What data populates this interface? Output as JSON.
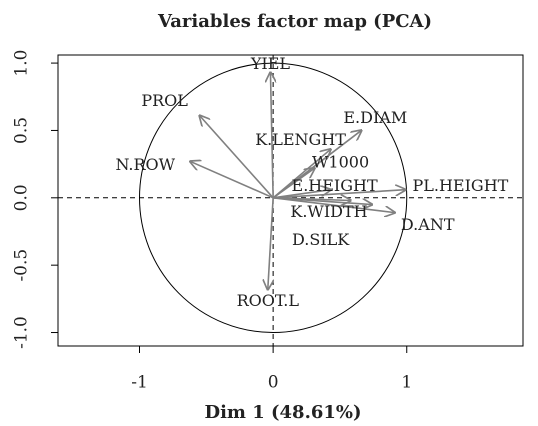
{
  "chart_data": {
    "type": "vector",
    "title": "Variables factor map (PCA)",
    "x_label": "Dim 1 (48.61%)",
    "labels": [
      "YIEL",
      "PROL",
      "N.ROW",
      "E.DIAM",
      "K.LENGHT",
      "W1000",
      "E.HEIGHT",
      "PL.HEIGHT",
      "D.ANT",
      "K.WIDTH",
      "D.SILK",
      "ROOT.L"
    ],
    "x": [
      -0.02,
      -0.55,
      -0.62,
      0.66,
      0.43,
      0.31,
      0.43,
      0.99,
      0.91,
      0.74,
      0.58,
      -0.04
    ],
    "y": [
      0.93,
      0.61,
      0.27,
      0.5,
      0.36,
      0.22,
      0.06,
      0.06,
      -0.11,
      -0.05,
      -0.02,
      -0.68
    ],
    "color": "#808080",
    "xlim": [
      -1.61,
      1.87
    ],
    "ylim": [
      -1.1,
      1.06
    ],
    "xticks": [
      -1,
      0,
      1
    ],
    "yticks": [
      {
        "value": -1,
        "label": "-1.0"
      },
      {
        "value": -0.5,
        "label": "-0.5"
      },
      {
        "value": 0,
        "label": "0.0"
      },
      {
        "value": 0.5,
        "label": "0.5"
      },
      {
        "value": 1,
        "label": "1.0"
      }
    ],
    "unit_circle": true
  }
}
